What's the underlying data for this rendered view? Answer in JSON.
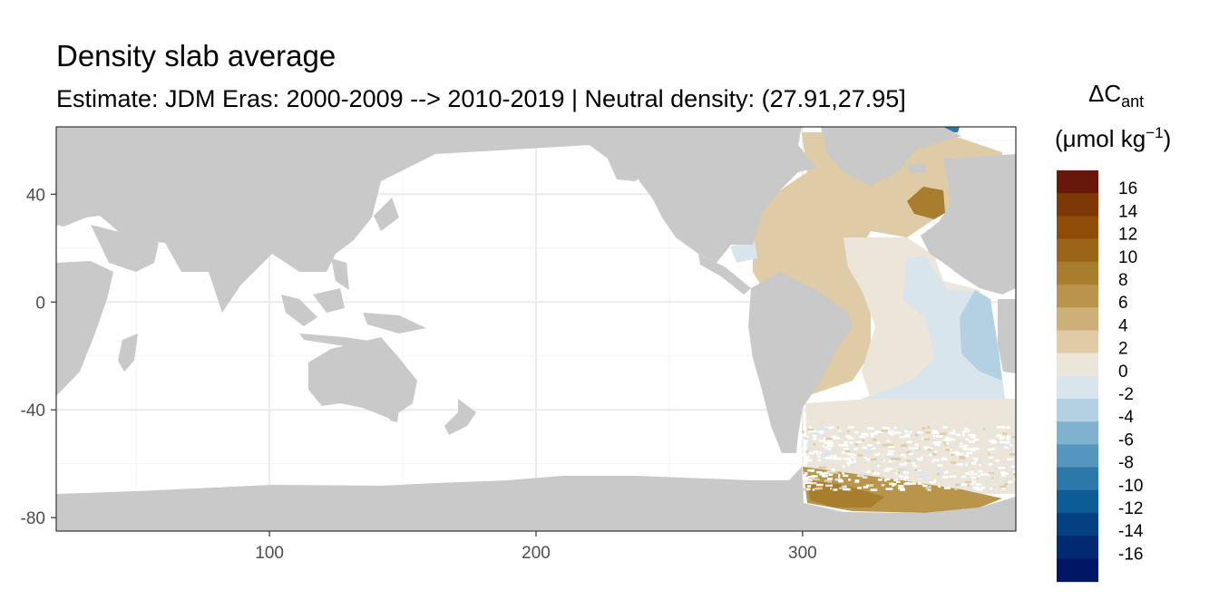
{
  "chart_data": {
    "type": "heatmap",
    "title": "Density slab average",
    "subtitle": "Estimate: JDM Eras: 2000-2009 --> 2010-2019 | Neutral density: (27.91,27.95]",
    "x_ticks": [
      100,
      200,
      300
    ],
    "y_ticks": [
      40,
      0,
      -40,
      -80
    ],
    "xlim": [
      20,
      380
    ],
    "ylim": [
      -85,
      65
    ],
    "grid": true,
    "legend": {
      "title_main": "ΔC",
      "title_sub": "ant",
      "unit_main": "(μmol kg",
      "unit_sup": "−1",
      "unit_end": ")",
      "placement": "right",
      "bins": [
        {
          "label": "16",
          "color": "#67180a"
        },
        {
          "label": "14",
          "color": "#7e3806"
        },
        {
          "label": "12",
          "color": "#8e4d09"
        },
        {
          "label": "10",
          "color": "#9b6517"
        },
        {
          "label": "8",
          "color": "#a87d2e"
        },
        {
          "label": "6",
          "color": "#b9954b"
        },
        {
          "label": "4",
          "color": "#cdaf78"
        },
        {
          "label": "2",
          "color": "#dfcca6"
        },
        {
          "label": "0",
          "color": "#ece6da"
        },
        {
          "label": "-2",
          "color": "#d9e5ec"
        },
        {
          "label": "-4",
          "color": "#b3d1e2"
        },
        {
          "label": "-6",
          "color": "#80b2d0"
        },
        {
          "label": "-8",
          "color": "#5596be"
        },
        {
          "label": "-10",
          "color": "#2c78a9"
        },
        {
          "label": "-12",
          "color": "#0c5c96"
        },
        {
          "label": "-14",
          "color": "#054081"
        },
        {
          "label": "-16",
          "color": "#022a72"
        },
        {
          "label": "",
          "color": "#011665"
        }
      ]
    },
    "regions": [
      {
        "name": "north-atlantic-subpolar",
        "value": 3.0
      },
      {
        "name": "north-atlantic-east-high",
        "value": 8.5
      },
      {
        "name": "tropical-atlantic-west",
        "value": 3.2
      },
      {
        "name": "equatorial-atlantic-core",
        "value": 0.8
      },
      {
        "name": "south-atlantic-east",
        "value": -1.0
      },
      {
        "name": "angola-basin",
        "value": -3.5
      },
      {
        "name": "southern-ocean-atlantic",
        "value": 1.0
      },
      {
        "name": "weddell-sea",
        "value": 6.5
      },
      {
        "name": "weddell-sea-core",
        "value": 9.5
      },
      {
        "name": "caribbean",
        "value": -1.5
      },
      {
        "name": "nordic-seas-jet",
        "value": -9.0
      }
    ]
  },
  "colors": {
    "land": "#c9c9c9",
    "grid": "#ebebeb",
    "panel_border": "#333333",
    "ocean_nodata": "#ffffff"
  }
}
